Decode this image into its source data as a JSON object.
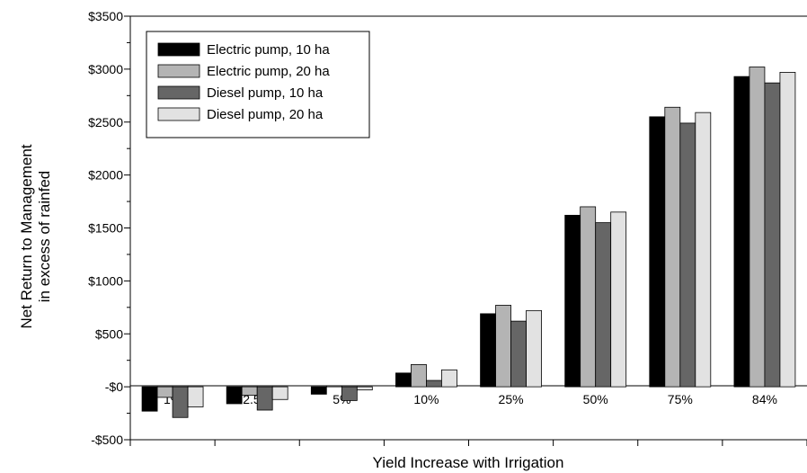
{
  "chart_data": {
    "type": "bar",
    "title": "",
    "xlabel": "Yield Increase with Irrigation",
    "ylabel": [
      "Net Return to Management",
      "in excess of rainfed"
    ],
    "categories": [
      "1%",
      "2.5%",
      "5%",
      "10%",
      "25%",
      "50%",
      "75%",
      "84%"
    ],
    "ylim": [
      -500,
      3500
    ],
    "yticks": [
      {
        "value": 3500,
        "label": "$3500"
      },
      {
        "value": 3000,
        "label": "$3000"
      },
      {
        "value": 2500,
        "label": "$2500"
      },
      {
        "value": 2000,
        "label": "$2000"
      },
      {
        "value": 1500,
        "label": "$1500"
      },
      {
        "value": 1000,
        "label": "$1000"
      },
      {
        "value": 500,
        "label": "$500"
      },
      {
        "value": 0,
        "label": "-$0"
      },
      {
        "value": -500,
        "label": "-$500"
      }
    ],
    "grid": false,
    "legend_position": "top-left",
    "series": [
      {
        "name": "Electric pump, 10 ha",
        "color": "#000000",
        "values": [
          -230,
          -160,
          -70,
          130,
          690,
          1620,
          2550,
          2930
        ]
      },
      {
        "name": "Electric pump, 20 ha",
        "color": "#b4b4b4",
        "values": [
          -100,
          -80,
          10,
          210,
          770,
          1700,
          2640,
          3020
        ]
      },
      {
        "name": "Diesel pump, 10 ha",
        "color": "#666666",
        "values": [
          -290,
          -220,
          -130,
          60,
          620,
          1550,
          2490,
          2870
        ]
      },
      {
        "name": "Diesel pump, 20 ha",
        "color": "#e2e2e2",
        "values": [
          -190,
          -120,
          -30,
          160,
          720,
          1650,
          2590,
          2970
        ]
      }
    ]
  }
}
